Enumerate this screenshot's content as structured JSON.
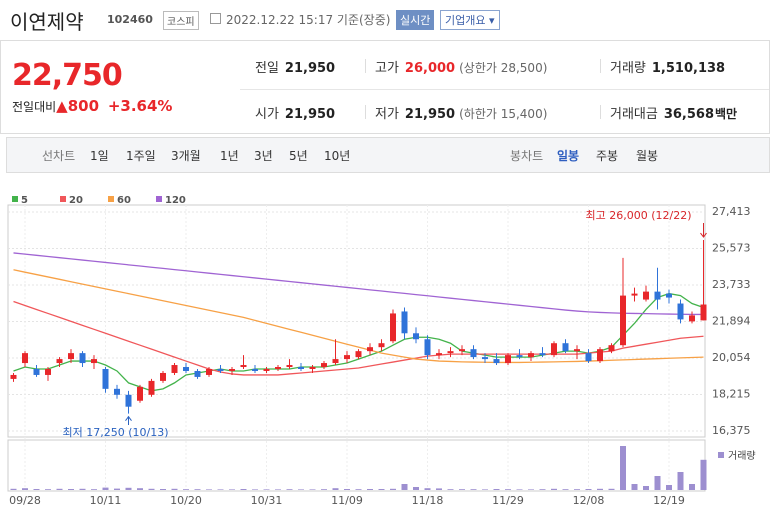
{
  "header": {
    "name": "이연제약",
    "code": "102460",
    "market": "코스피",
    "datetime": "2022.12.22 15:17 기준(장중)",
    "realtime": "실시간",
    "company_info": "기업개요 ▾"
  },
  "price": {
    "current": "22,750",
    "change_label": "전일대비",
    "change": "▲800",
    "change_pct": "+3.64%"
  },
  "summary": [
    {
      "label": "전일",
      "value": "21,950"
    },
    {
      "label": "고가",
      "value": "26,000",
      "note": "(상한가 28,500)"
    },
    {
      "label": "거래량",
      "value": "1,510,138"
    },
    {
      "label": "시가",
      "value": "21,950"
    },
    {
      "label": "저가",
      "value": "21,950",
      "note": "(하한가 15,400)"
    },
    {
      "label": "거래대금",
      "value": "36,568",
      "unit": "백만"
    }
  ],
  "tabs": {
    "line_label": "선차트",
    "line": [
      "1일",
      "1주일",
      "3개월",
      "1년",
      "3년",
      "5년",
      "10년"
    ],
    "candle_label": "봉차트",
    "candle": [
      "일봉",
      "주봉",
      "월봉"
    ],
    "selected": "일봉"
  },
  "chart_data": {
    "type": "candlestick",
    "categories": [
      null,
      "09/28",
      null,
      null,
      null,
      null,
      null,
      null,
      "10/11",
      null,
      null,
      null,
      null,
      null,
      null,
      "10/20",
      null,
      null,
      null,
      null,
      null,
      null,
      "10/31",
      null,
      null,
      null,
      null,
      null,
      null,
      "11/09",
      null,
      null,
      null,
      null,
      null,
      null,
      "11/18",
      null,
      null,
      null,
      null,
      null,
      null,
      "11/29",
      null,
      null,
      null,
      null,
      null,
      null,
      "12/08",
      null,
      null,
      null,
      null,
      null,
      null,
      "12/19",
      null,
      null,
      null
    ],
    "open": [
      19000,
      19800,
      19500,
      19200,
      19800,
      20000,
      20300,
      19800,
      19500,
      18500,
      18200,
      17900,
      18200,
      18900,
      19300,
      19600,
      19400,
      19200,
      19500,
      19400,
      19600,
      19500,
      19400,
      19500,
      19600,
      19600,
      19500,
      19600,
      19800,
      20000,
      20100,
      20400,
      20600,
      20900,
      22400,
      21300,
      21000,
      20200,
      20300,
      20400,
      20500,
      20100,
      20000,
      19800,
      20200,
      20100,
      20300,
      20200,
      20800,
      20400,
      20300,
      19900,
      20400,
      20700,
      23200,
      23000,
      23400,
      23300,
      22800,
      21900,
      21950
    ],
    "high": [
      19300,
      20400,
      19700,
      19600,
      20100,
      20500,
      20400,
      20200,
      19600,
      18700,
      18400,
      18700,
      19000,
      19400,
      19800,
      19800,
      19500,
      19600,
      19700,
      19600,
      20200,
      19700,
      19600,
      19700,
      20000,
      19800,
      19700,
      19900,
      21000,
      20400,
      20500,
      20800,
      21000,
      22500,
      22600,
      21600,
      21200,
      20500,
      20600,
      20700,
      20700,
      20300,
      20300,
      20300,
      20500,
      20400,
      20600,
      20900,
      21000,
      20700,
      20500,
      20600,
      20800,
      25100,
      23600,
      23700,
      24600,
      23500,
      23000,
      22400,
      26000
    ],
    "low": [
      18850,
      19600,
      19100,
      18900,
      19600,
      19800,
      19600,
      19500,
      18300,
      18000,
      17250,
      17800,
      18100,
      18800,
      19200,
      19300,
      19000,
      19100,
      19300,
      19200,
      19500,
      19300,
      19300,
      19400,
      19500,
      19400,
      19300,
      19500,
      19700,
      19800,
      20000,
      20200,
      20400,
      20800,
      21000,
      20800,
      20000,
      20000,
      20100,
      20200,
      20000,
      19800,
      19700,
      19700,
      20000,
      19900,
      20100,
      20100,
      20300,
      20000,
      19800,
      19800,
      20300,
      20600,
      22900,
      22900,
      22500,
      22800,
      21800,
      21800,
      21950
    ],
    "close": [
      19200,
      20300,
      19200,
      19500,
      20000,
      20300,
      19800,
      20000,
      18500,
      18200,
      17600,
      18600,
      18900,
      19300,
      19700,
      19400,
      19100,
      19500,
      19400,
      19500,
      19700,
      19400,
      19500,
      19600,
      19700,
      19500,
      19600,
      19800,
      20000,
      20200,
      20400,
      20600,
      20800,
      22300,
      21300,
      21000,
      20200,
      20300,
      20400,
      20500,
      20100,
      20000,
      19800,
      20200,
      20100,
      20300,
      20200,
      20800,
      20400,
      20500,
      19900,
      20500,
      20700,
      23200,
      23300,
      23400,
      23000,
      23100,
      22000,
      22200,
      22750
    ],
    "series": [
      {
        "name": "5",
        "color": "#43b34b",
        "values": [
          19400,
          19600,
          19500,
          19500,
          19700,
          19900,
          19900,
          19900,
          19700,
          19400,
          18800,
          18600,
          18400,
          18500,
          18800,
          19200,
          19300,
          19400,
          19500,
          19400,
          19400,
          19500,
          19500,
          19500,
          19500,
          19600,
          19600,
          19600,
          19700,
          19800,
          20000,
          20200,
          20400,
          20700,
          21000,
          21100,
          21100,
          21000,
          20800,
          20400,
          20300,
          20200,
          20100,
          20100,
          20100,
          20100,
          20200,
          20300,
          20400,
          20400,
          20300,
          20400,
          20600,
          21200,
          21800,
          22500,
          23100,
          23300,
          23200,
          22800,
          22600
        ]
      },
      {
        "name": "20",
        "color": "#f0575a",
        "values": [
          22900,
          22700,
          22500,
          22300,
          22100,
          21900,
          21700,
          21500,
          21300,
          21100,
          20900,
          20700,
          20500,
          20300,
          20100,
          19900,
          19700,
          19500,
          19350,
          19250,
          19200,
          19200,
          19200,
          19200,
          19250,
          19300,
          19350,
          19400,
          19450,
          19500,
          19550,
          19650,
          19750,
          19850,
          19950,
          20050,
          20150,
          20200,
          20250,
          20250,
          20250,
          20250,
          20250,
          20250,
          20250,
          20250,
          20250,
          20250,
          20250,
          20250,
          20300,
          20350,
          20400,
          20550,
          20650,
          20750,
          20850,
          20950,
          21050,
          21100,
          21150
        ]
      },
      {
        "name": "60",
        "color": "#f7a146",
        "values": [
          24500,
          24380,
          24260,
          24140,
          24020,
          23900,
          23780,
          23660,
          23540,
          23420,
          23300,
          23180,
          23060,
          22940,
          22820,
          22700,
          22580,
          22460,
          22340,
          22220,
          22100,
          21950,
          21800,
          21650,
          21500,
          21350,
          21200,
          21050,
          20900,
          20750,
          20600,
          20450,
          20300,
          20200,
          20100,
          20000,
          19950,
          19900,
          19880,
          19860,
          19850,
          19840,
          19830,
          19830,
          19830,
          19840,
          19850,
          19860,
          19870,
          19880,
          19900,
          19920,
          19940,
          19960,
          19980,
          20000,
          20020,
          20040,
          20060,
          20080,
          20100
        ]
      },
      {
        "name": "120",
        "color": "#a064d3",
        "values": [
          25350,
          25290,
          25230,
          25170,
          25110,
          25050,
          24990,
          24930,
          24870,
          24810,
          24750,
          24690,
          24630,
          24570,
          24510,
          24450,
          24390,
          24330,
          24270,
          24210,
          24150,
          24090,
          24030,
          23970,
          23910,
          23850,
          23790,
          23730,
          23670,
          23610,
          23550,
          23490,
          23430,
          23370,
          23310,
          23250,
          23190,
          23130,
          23070,
          23010,
          22950,
          22890,
          22830,
          22770,
          22710,
          22650,
          22590,
          22530,
          22470,
          22420,
          22380,
          22350,
          22330,
          22310,
          22300,
          22290,
          22280,
          22270,
          22260,
          22250,
          22250
        ]
      }
    ],
    "volume": {
      "name": "거래량",
      "color": "#9d8fd0",
      "values": [
        60000,
        90000,
        50000,
        40000,
        60000,
        50000,
        60000,
        40000,
        120000,
        70000,
        110000,
        90000,
        60000,
        50000,
        60000,
        40000,
        40000,
        30000,
        30000,
        30000,
        50000,
        30000,
        30000,
        30000,
        40000,
        30000,
        30000,
        40000,
        90000,
        50000,
        40000,
        50000,
        50000,
        60000,
        300000,
        150000,
        90000,
        80000,
        40000,
        40000,
        40000,
        30000,
        50000,
        40000,
        30000,
        30000,
        40000,
        60000,
        40000,
        40000,
        50000,
        60000,
        60000,
        2200000,
        300000,
        200000,
        700000,
        250000,
        900000,
        300000,
        1510138
      ]
    },
    "up_color": "#e8272a",
    "down_color": "#2f73d9",
    "ylim": [
      16375,
      27413
    ],
    "yticks": [
      {
        "value": 16375,
        "label": "16,375"
      },
      {
        "value": 18215,
        "label": "18,215"
      },
      {
        "value": 20054,
        "label": "20,054"
      },
      {
        "value": 21894,
        "label": "21,894"
      },
      {
        "value": 23733,
        "label": "23,733"
      },
      {
        "value": 25573,
        "label": "25,573"
      },
      {
        "value": 27413,
        "label": "27,413"
      }
    ],
    "grid": true,
    "annotations": {
      "high": "최고 26,000 (12/22)",
      "low": "최저 17,250 (10/13)"
    }
  }
}
